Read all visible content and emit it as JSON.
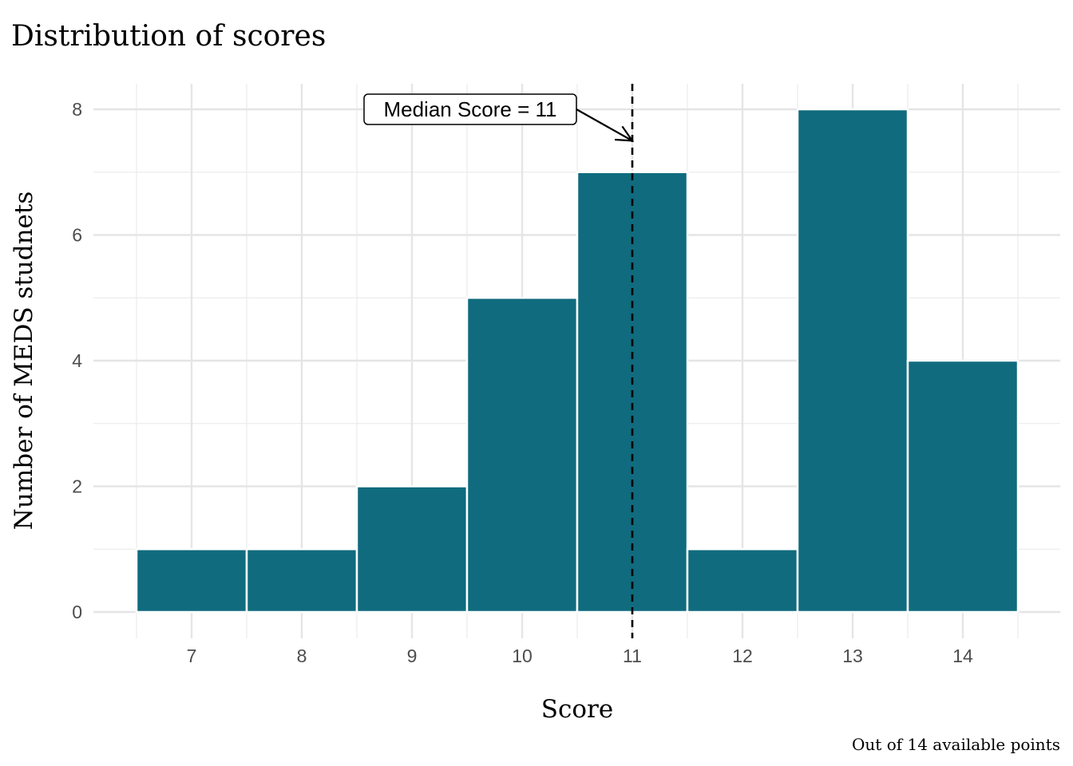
{
  "chart_data": {
    "type": "bar",
    "title": "Distribution of scores",
    "xlabel": "Score",
    "ylabel": "Number of MEDS studnets",
    "caption": "Out of 14 available points",
    "categories": [
      7,
      8,
      9,
      10,
      11,
      12,
      13,
      14
    ],
    "values": [
      1,
      1,
      2,
      5,
      7,
      1,
      8,
      4
    ],
    "xlim": [
      6.5,
      14.5
    ],
    "ylim": [
      0,
      8
    ],
    "yticks": [
      0,
      2,
      4,
      6,
      8
    ],
    "bar_color": "#106b7e",
    "grid": true,
    "median_line": {
      "x": 11,
      "style": "dashed",
      "color": "#000000"
    },
    "annotation": {
      "label": "Median Score = 11",
      "arrow_to": {
        "x": 11,
        "y": 7.5
      }
    }
  }
}
